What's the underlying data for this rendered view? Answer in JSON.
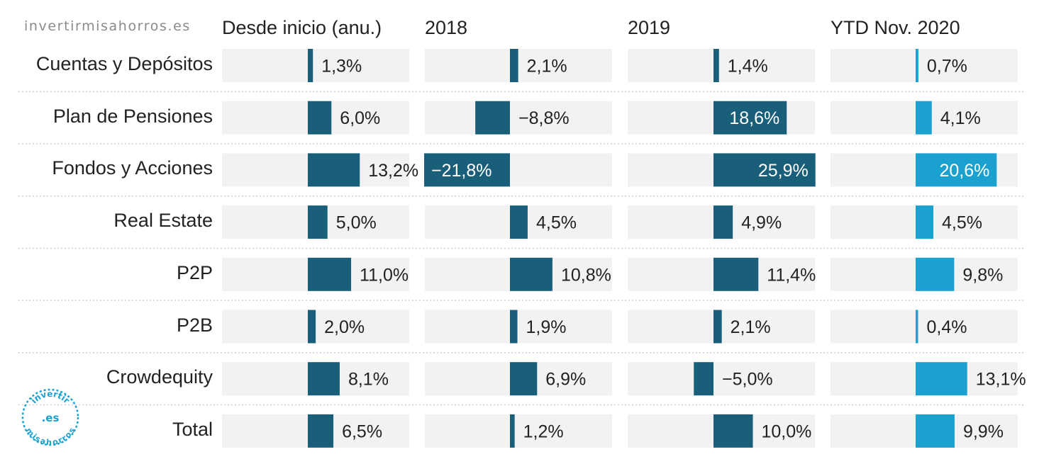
{
  "header": {
    "site_url": "invertirmisahorros.es"
  },
  "logo": {
    "line1": "invertir",
    "line2": ".es",
    "line3": "misahorros"
  },
  "chart_data": {
    "type": "bar",
    "orientation": "horizontal-small-multiples",
    "title": "",
    "categories": [
      "Cuentas y Depósitos",
      "Plan de Pensiones",
      "Fondos y Acciones",
      "Real Estate",
      "P2P",
      "P2B",
      "Crowdequity",
      "Total"
    ],
    "series": [
      {
        "name": "Desde inicio (anu.)",
        "color": "#1a5f7a",
        "values": [
          1.3,
          6.0,
          13.2,
          5.0,
          11.0,
          2.0,
          8.1,
          6.5
        ],
        "labels": [
          "1,3%",
          "6,0%",
          "13,2%",
          "5,0%",
          "11,0%",
          "2,0%",
          "8,1%",
          "6,5%"
        ]
      },
      {
        "name": "2018",
        "color": "#1a5f7a",
        "values": [
          2.1,
          -8.8,
          -21.8,
          4.5,
          10.8,
          1.9,
          6.9,
          1.2
        ],
        "labels": [
          "2,1%",
          "−8,8%",
          "−21,8%",
          "4,5%",
          "10,8%",
          "1,9%",
          "6,9%",
          "1,2%"
        ]
      },
      {
        "name": "2019",
        "color": "#1a5f7a",
        "values": [
          1.4,
          18.6,
          25.9,
          4.9,
          11.4,
          2.1,
          -5.0,
          10.0
        ],
        "labels": [
          "1,4%",
          "18,6%",
          "25,9%",
          "4,9%",
          "11,4%",
          "2,1%",
          "−5,0%",
          "10,0%"
        ]
      },
      {
        "name": "YTD Nov. 2020",
        "color": "#1ba1cf",
        "values": [
          0.7,
          4.1,
          20.6,
          4.5,
          9.8,
          0.4,
          13.1,
          9.9
        ],
        "labels": [
          "0,7%",
          "4,1%",
          "20,6%",
          "4,5%",
          "9,8%",
          "0,4%",
          "13,1%",
          "9,9%"
        ]
      }
    ],
    "colors": {
      "dark": "#1a5f7a",
      "light": "#1ba1cf",
      "track": "#f2f2f2",
      "divider": "#cfcfcf"
    },
    "legend": "none",
    "grid": false
  }
}
